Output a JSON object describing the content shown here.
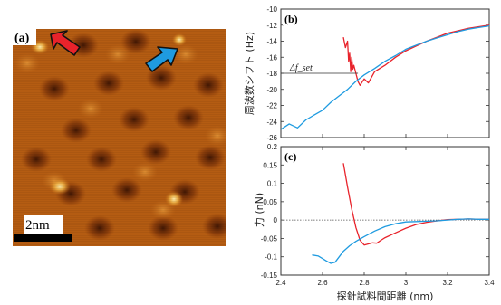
{
  "panel_a": {
    "label": "(a)",
    "scalebar_label": "2nm",
    "arrows": [
      {
        "name": "red-arrow",
        "color": "#e8232b"
      },
      {
        "name": "blue-arrow",
        "color": "#1f9be0"
      }
    ]
  },
  "chart_data": [
    {
      "panel": "(b)",
      "type": "line",
      "ylabel": "周波数シフト (Hz)",
      "xlim": [
        2.4,
        3.4
      ],
      "ylim": [
        -26,
        -10
      ],
      "yticks": [
        -10,
        -12,
        -14,
        -16,
        -18,
        -20,
        -22,
        -24,
        -26
      ],
      "annotation": "Δf_set",
      "annotation_y": -18,
      "series": [
        {
          "color": "#e8232b",
          "x": [
            2.7,
            2.71,
            2.72,
            2.725,
            2.73,
            2.735,
            2.74,
            2.745,
            2.75,
            2.76,
            2.77,
            2.78,
            2.8,
            2.82,
            2.85,
            2.9,
            2.95,
            3.0,
            3.05,
            3.1,
            3.15,
            3.2,
            3.25,
            3.3,
            3.35,
            3.4
          ],
          "y": [
            -13.5,
            -14.8,
            -14.0,
            -16.5,
            -15.5,
            -17.8,
            -16.0,
            -17.5,
            -17.0,
            -18.0,
            -19.0,
            -19.5,
            -18.7,
            -19.2,
            -17.8,
            -17.0,
            -16.0,
            -15.2,
            -14.6,
            -14.0,
            -13.5,
            -13.0,
            -12.7,
            -12.4,
            -12.2,
            -12.0
          ]
        },
        {
          "color": "#1f9be0",
          "x": [
            2.4,
            2.44,
            2.48,
            2.52,
            2.56,
            2.6,
            2.64,
            2.68,
            2.72,
            2.76,
            2.8,
            2.85,
            2.9,
            2.95,
            3.0,
            3.05,
            3.1,
            3.15,
            3.2,
            3.25,
            3.3,
            3.35,
            3.4
          ],
          "y": [
            -25.0,
            -24.3,
            -24.8,
            -23.8,
            -23.2,
            -22.6,
            -21.6,
            -20.8,
            -20.0,
            -19.0,
            -18.2,
            -17.4,
            -16.5,
            -15.8,
            -15.0,
            -14.5,
            -14.0,
            -13.6,
            -13.2,
            -12.8,
            -12.5,
            -12.3,
            -12.1
          ]
        }
      ]
    },
    {
      "panel": "(c)",
      "type": "line",
      "ylabel": "力 (nN)",
      "xlabel": "探針試料間距離 (nm)",
      "xlim": [
        2.4,
        3.4
      ],
      "ylim": [
        -0.15,
        0.2
      ],
      "xticks": [
        2.4,
        2.6,
        2.8,
        3,
        3.2,
        3.4
      ],
      "yticks": [
        0.2,
        0.15,
        0.1,
        0.05,
        0,
        -0.05,
        -0.1,
        -0.15
      ],
      "series": [
        {
          "color": "#e8232b",
          "x": [
            2.7,
            2.72,
            2.74,
            2.76,
            2.78,
            2.8,
            2.82,
            2.84,
            2.86,
            2.88,
            2.9,
            2.95,
            3.0,
            3.05,
            3.1,
            3.15,
            3.2,
            3.25,
            3.3,
            3.35,
            3.4
          ],
          "y": [
            0.155,
            0.09,
            0.03,
            -0.02,
            -0.055,
            -0.068,
            -0.065,
            -0.062,
            -0.063,
            -0.055,
            -0.048,
            -0.035,
            -0.022,
            -0.012,
            -0.006,
            -0.002,
            0.001,
            0.002,
            0.003,
            0.002,
            0.002
          ]
        },
        {
          "color": "#1f9be0",
          "x": [
            2.55,
            2.58,
            2.6,
            2.62,
            2.64,
            2.66,
            2.68,
            2.7,
            2.73,
            2.76,
            2.8,
            2.85,
            2.9,
            2.95,
            3.0,
            3.05,
            3.1,
            3.15,
            3.2,
            3.25,
            3.3,
            3.35,
            3.4
          ],
          "y": [
            -0.095,
            -0.098,
            -0.105,
            -0.112,
            -0.118,
            -0.115,
            -0.1,
            -0.085,
            -0.07,
            -0.058,
            -0.045,
            -0.03,
            -0.018,
            -0.01,
            -0.005,
            -0.004,
            -0.003,
            -0.002,
            0.0,
            0.002,
            0.003,
            0.002,
            0.002
          ]
        }
      ]
    }
  ]
}
